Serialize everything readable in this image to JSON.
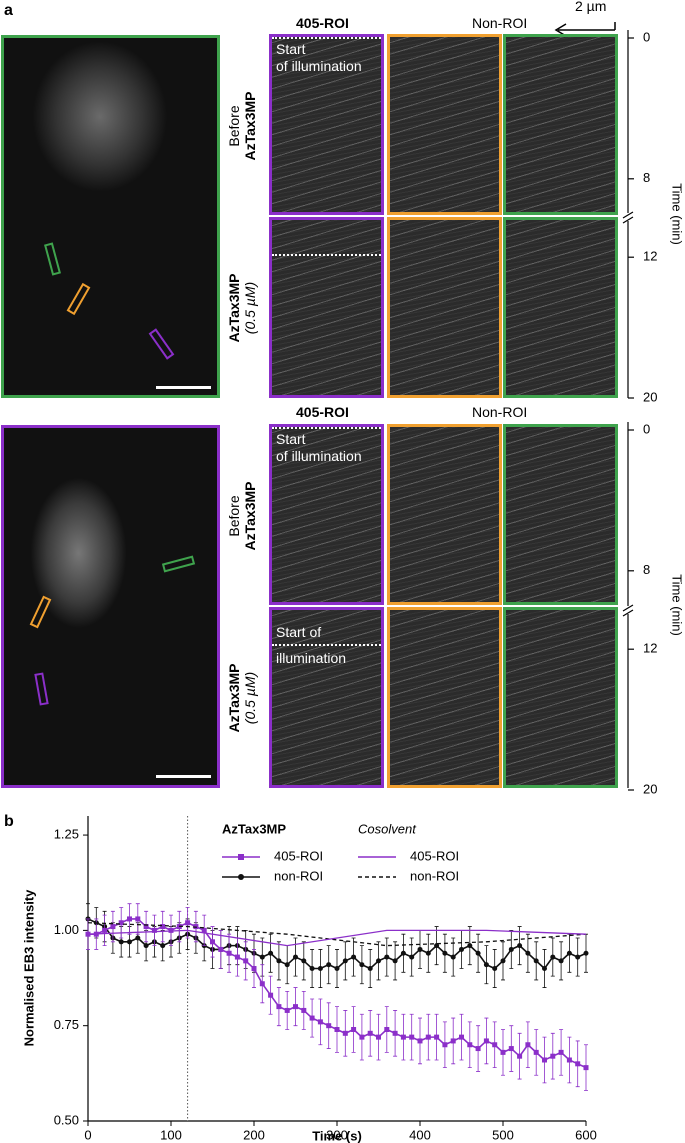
{
  "panel_a": {
    "label": "a",
    "header_roi": "405-ROI",
    "header_nonroi": "Non-ROI",
    "scale": "2 µm",
    "time_axis_label": "Time (min)",
    "time_ticks": [
      0,
      8,
      12,
      20
    ],
    "rows": [
      {
        "line1": "Before",
        "line2": "AzTax3MP"
      },
      {
        "line1": "AzTax3MP",
        "line2": "(0.5 µM)"
      }
    ],
    "top_cell": {
      "start_label": [
        "Start",
        "of illumination"
      ]
    },
    "bottom_cell": {
      "start_label": [
        "Start of",
        "illumination"
      ]
    }
  },
  "chart_data": {
    "type": "line",
    "label": "b",
    "xlabel": "Time (s)",
    "ylabel": "Normalised EB3 intensity",
    "xlim": [
      0,
      600
    ],
    "xticks": [
      0,
      100,
      200,
      300,
      400,
      500,
      600
    ],
    "ylim": [
      0.5,
      1.3
    ],
    "yticks": [
      {
        "value": 0.5,
        "label": "0.50"
      },
      0.75,
      {
        "value": 1,
        "label": "1.00"
      },
      1.25
    ],
    "vline_x": 120,
    "series_groups": [
      {
        "title": "AzTax3MP",
        "series": [
          {
            "name": "405-ROI",
            "color": "#8b2fc9",
            "marker": "square",
            "dash": false,
            "x": [
              0,
              10,
              20,
              30,
              40,
              50,
              60,
              70,
              80,
              90,
              100,
              110,
              120,
              130,
              140,
              150,
              160,
              170,
              180,
              190,
              200,
              210,
              220,
              230,
              240,
              250,
              260,
              270,
              280,
              290,
              300,
              310,
              320,
              330,
              340,
              350,
              360,
              370,
              380,
              390,
              400,
              410,
              420,
              430,
              440,
              450,
              460,
              470,
              480,
              490,
              500,
              510,
              520,
              530,
              540,
              550,
              560,
              570,
              580,
              590,
              600
            ],
            "values": [
              0.99,
              0.99,
              1.0,
              1.01,
              1.02,
              1.03,
              1.03,
              1.01,
              1.0,
              1.01,
              1.0,
              1.01,
              1.02,
              1.01,
              1.0,
              0.97,
              0.95,
              0.94,
              0.93,
              0.92,
              0.9,
              0.86,
              0.83,
              0.8,
              0.79,
              0.8,
              0.79,
              0.77,
              0.76,
              0.75,
              0.74,
              0.73,
              0.74,
              0.72,
              0.73,
              0.72,
              0.74,
              0.73,
              0.72,
              0.72,
              0.71,
              0.72,
              0.72,
              0.7,
              0.71,
              0.72,
              0.7,
              0.69,
              0.71,
              0.7,
              0.68,
              0.69,
              0.67,
              0.7,
              0.68,
              0.66,
              0.67,
              0.68,
              0.66,
              0.65,
              0.64
            ],
            "errors": [
              0.04,
              0.04,
              0.04,
              0.04,
              0.04,
              0.04,
              0.04,
              0.04,
              0.04,
              0.04,
              0.04,
              0.04,
              0.04,
              0.04,
              0.04,
              0.04,
              0.05,
              0.05,
              0.05,
              0.05,
              0.05,
              0.05,
              0.05,
              0.05,
              0.05,
              0.05,
              0.05,
              0.05,
              0.06,
              0.06,
              0.06,
              0.06,
              0.06,
              0.06,
              0.06,
              0.06,
              0.06,
              0.06,
              0.06,
              0.06,
              0.06,
              0.06,
              0.06,
              0.06,
              0.06,
              0.06,
              0.06,
              0.06,
              0.06,
              0.06,
              0.06,
              0.06,
              0.06,
              0.06,
              0.06,
              0.06,
              0.06,
              0.06,
              0.06,
              0.06,
              0.06
            ]
          },
          {
            "name": "non-ROI",
            "color": "#111111",
            "marker": "circle",
            "dash": false,
            "x": [
              0,
              10,
              20,
              30,
              40,
              50,
              60,
              70,
              80,
              90,
              100,
              110,
              120,
              130,
              140,
              150,
              160,
              170,
              180,
              190,
              200,
              210,
              220,
              230,
              240,
              250,
              260,
              270,
              280,
              290,
              300,
              310,
              320,
              330,
              340,
              350,
              360,
              370,
              380,
              390,
              400,
              410,
              420,
              430,
              440,
              450,
              460,
              470,
              480,
              490,
              500,
              510,
              520,
              530,
              540,
              550,
              560,
              570,
              580,
              590,
              600
            ],
            "values": [
              1.03,
              1.02,
              1.01,
              0.98,
              0.97,
              0.97,
              0.98,
              0.96,
              0.97,
              0.96,
              0.97,
              0.98,
              0.99,
              0.98,
              0.96,
              0.95,
              0.95,
              0.96,
              0.96,
              0.95,
              0.94,
              0.93,
              0.94,
              0.92,
              0.91,
              0.93,
              0.92,
              0.9,
              0.9,
              0.91,
              0.9,
              0.92,
              0.93,
              0.91,
              0.9,
              0.92,
              0.93,
              0.92,
              0.94,
              0.93,
              0.95,
              0.94,
              0.96,
              0.94,
              0.93,
              0.95,
              0.96,
              0.94,
              0.91,
              0.9,
              0.92,
              0.95,
              0.96,
              0.94,
              0.92,
              0.9,
              0.93,
              0.92,
              0.94,
              0.93,
              0.94
            ],
            "errors": [
              0.04,
              0.04,
              0.04,
              0.04,
              0.04,
              0.04,
              0.04,
              0.04,
              0.04,
              0.04,
              0.04,
              0.04,
              0.04,
              0.04,
              0.04,
              0.05,
              0.05,
              0.05,
              0.05,
              0.05,
              0.05,
              0.05,
              0.05,
              0.05,
              0.05,
              0.05,
              0.05,
              0.05,
              0.05,
              0.05,
              0.05,
              0.05,
              0.05,
              0.05,
              0.05,
              0.05,
              0.05,
              0.05,
              0.05,
              0.05,
              0.05,
              0.05,
              0.05,
              0.05,
              0.05,
              0.05,
              0.05,
              0.05,
              0.05,
              0.05,
              0.05,
              0.05,
              0.05,
              0.05,
              0.05,
              0.05,
              0.05,
              0.05,
              0.05,
              0.05,
              0.05
            ]
          }
        ]
      },
      {
        "title": "Cosolvent",
        "series": [
          {
            "name": "405-ROI",
            "color": "#8b2fc9",
            "marker": null,
            "dash": false,
            "x": [
              0,
              120,
              240,
              360,
              480,
              600
            ],
            "values": [
              0.99,
              1.0,
              0.96,
              1.0,
              1.0,
              0.99
            ]
          },
          {
            "name": "non-ROI",
            "color": "#111111",
            "marker": null,
            "dash": true,
            "x": [
              0,
              120,
              240,
              360,
              480,
              600
            ],
            "values": [
              1.02,
              1.01,
              0.99,
              0.96,
              0.97,
              0.99
            ]
          }
        ]
      }
    ]
  }
}
